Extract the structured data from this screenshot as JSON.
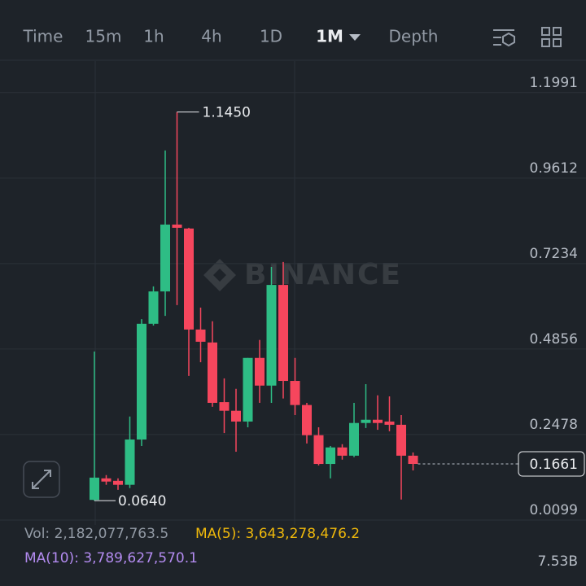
{
  "toolbar": {
    "tabs": [
      "Time",
      "15m",
      "1h",
      "4h",
      "1D",
      "1M",
      "Depth"
    ],
    "active": 5
  },
  "chart_data": {
    "type": "candlestick",
    "open": [
      0.066,
      0.126,
      0.119,
      0.108,
      0.234,
      0.556,
      0.646,
      0.832,
      0.821,
      0.54,
      0.504,
      0.338,
      0.314,
      0.284,
      0.461,
      0.384,
      0.664,
      0.397,
      0.33,
      0.246,
      0.166,
      0.212,
      0.189,
      0.28,
      0.289,
      0.284,
      0.275,
      0.189
    ],
    "high": [
      0.479,
      0.135,
      0.126,
      0.298,
      0.569,
      0.66,
      1.038,
      1.145,
      0.823,
      0.601,
      0.563,
      0.404,
      0.375,
      0.461,
      0.511,
      0.714,
      0.728,
      0.461,
      0.336,
      0.268,
      0.216,
      0.221,
      0.336,
      0.388,
      0.357,
      0.354,
      0.302,
      0.198
    ],
    "low": [
      0.064,
      0.108,
      0.094,
      0.099,
      0.216,
      0.551,
      0.578,
      0.608,
      0.411,
      0.449,
      0.325,
      0.252,
      0.2,
      0.268,
      0.336,
      0.336,
      0.348,
      0.302,
      0.223,
      0.162,
      0.126,
      0.178,
      0.185,
      0.266,
      0.261,
      0.257,
      0.067,
      0.148
    ],
    "close": [
      0.128,
      0.117,
      0.108,
      0.234,
      0.556,
      0.646,
      0.832,
      0.823,
      0.54,
      0.506,
      0.336,
      0.314,
      0.284,
      0.461,
      0.384,
      0.664,
      0.397,
      0.33,
      0.246,
      0.166,
      0.212,
      0.189,
      0.28,
      0.289,
      0.28,
      0.275,
      0.189,
      0.1661
    ],
    "high_label": "1.1450",
    "low_label": "0.0640",
    "up_color": "#2ebd85",
    "down_color": "#f6465d",
    "ylim": [
      -0.0037,
      1.2869
    ],
    "yticks": [
      0.0099,
      0.2478,
      0.4856,
      0.7234,
      0.9612,
      1.1991
    ],
    "grid": true
  },
  "indicators": {
    "volume": "Vol: 2,182,077,763.5",
    "ma5": "MA(5): 3,643,278,476.2",
    "ma10": "MA(10): 3,789,627,570.1",
    "volume_axis": "7.53B"
  }
}
